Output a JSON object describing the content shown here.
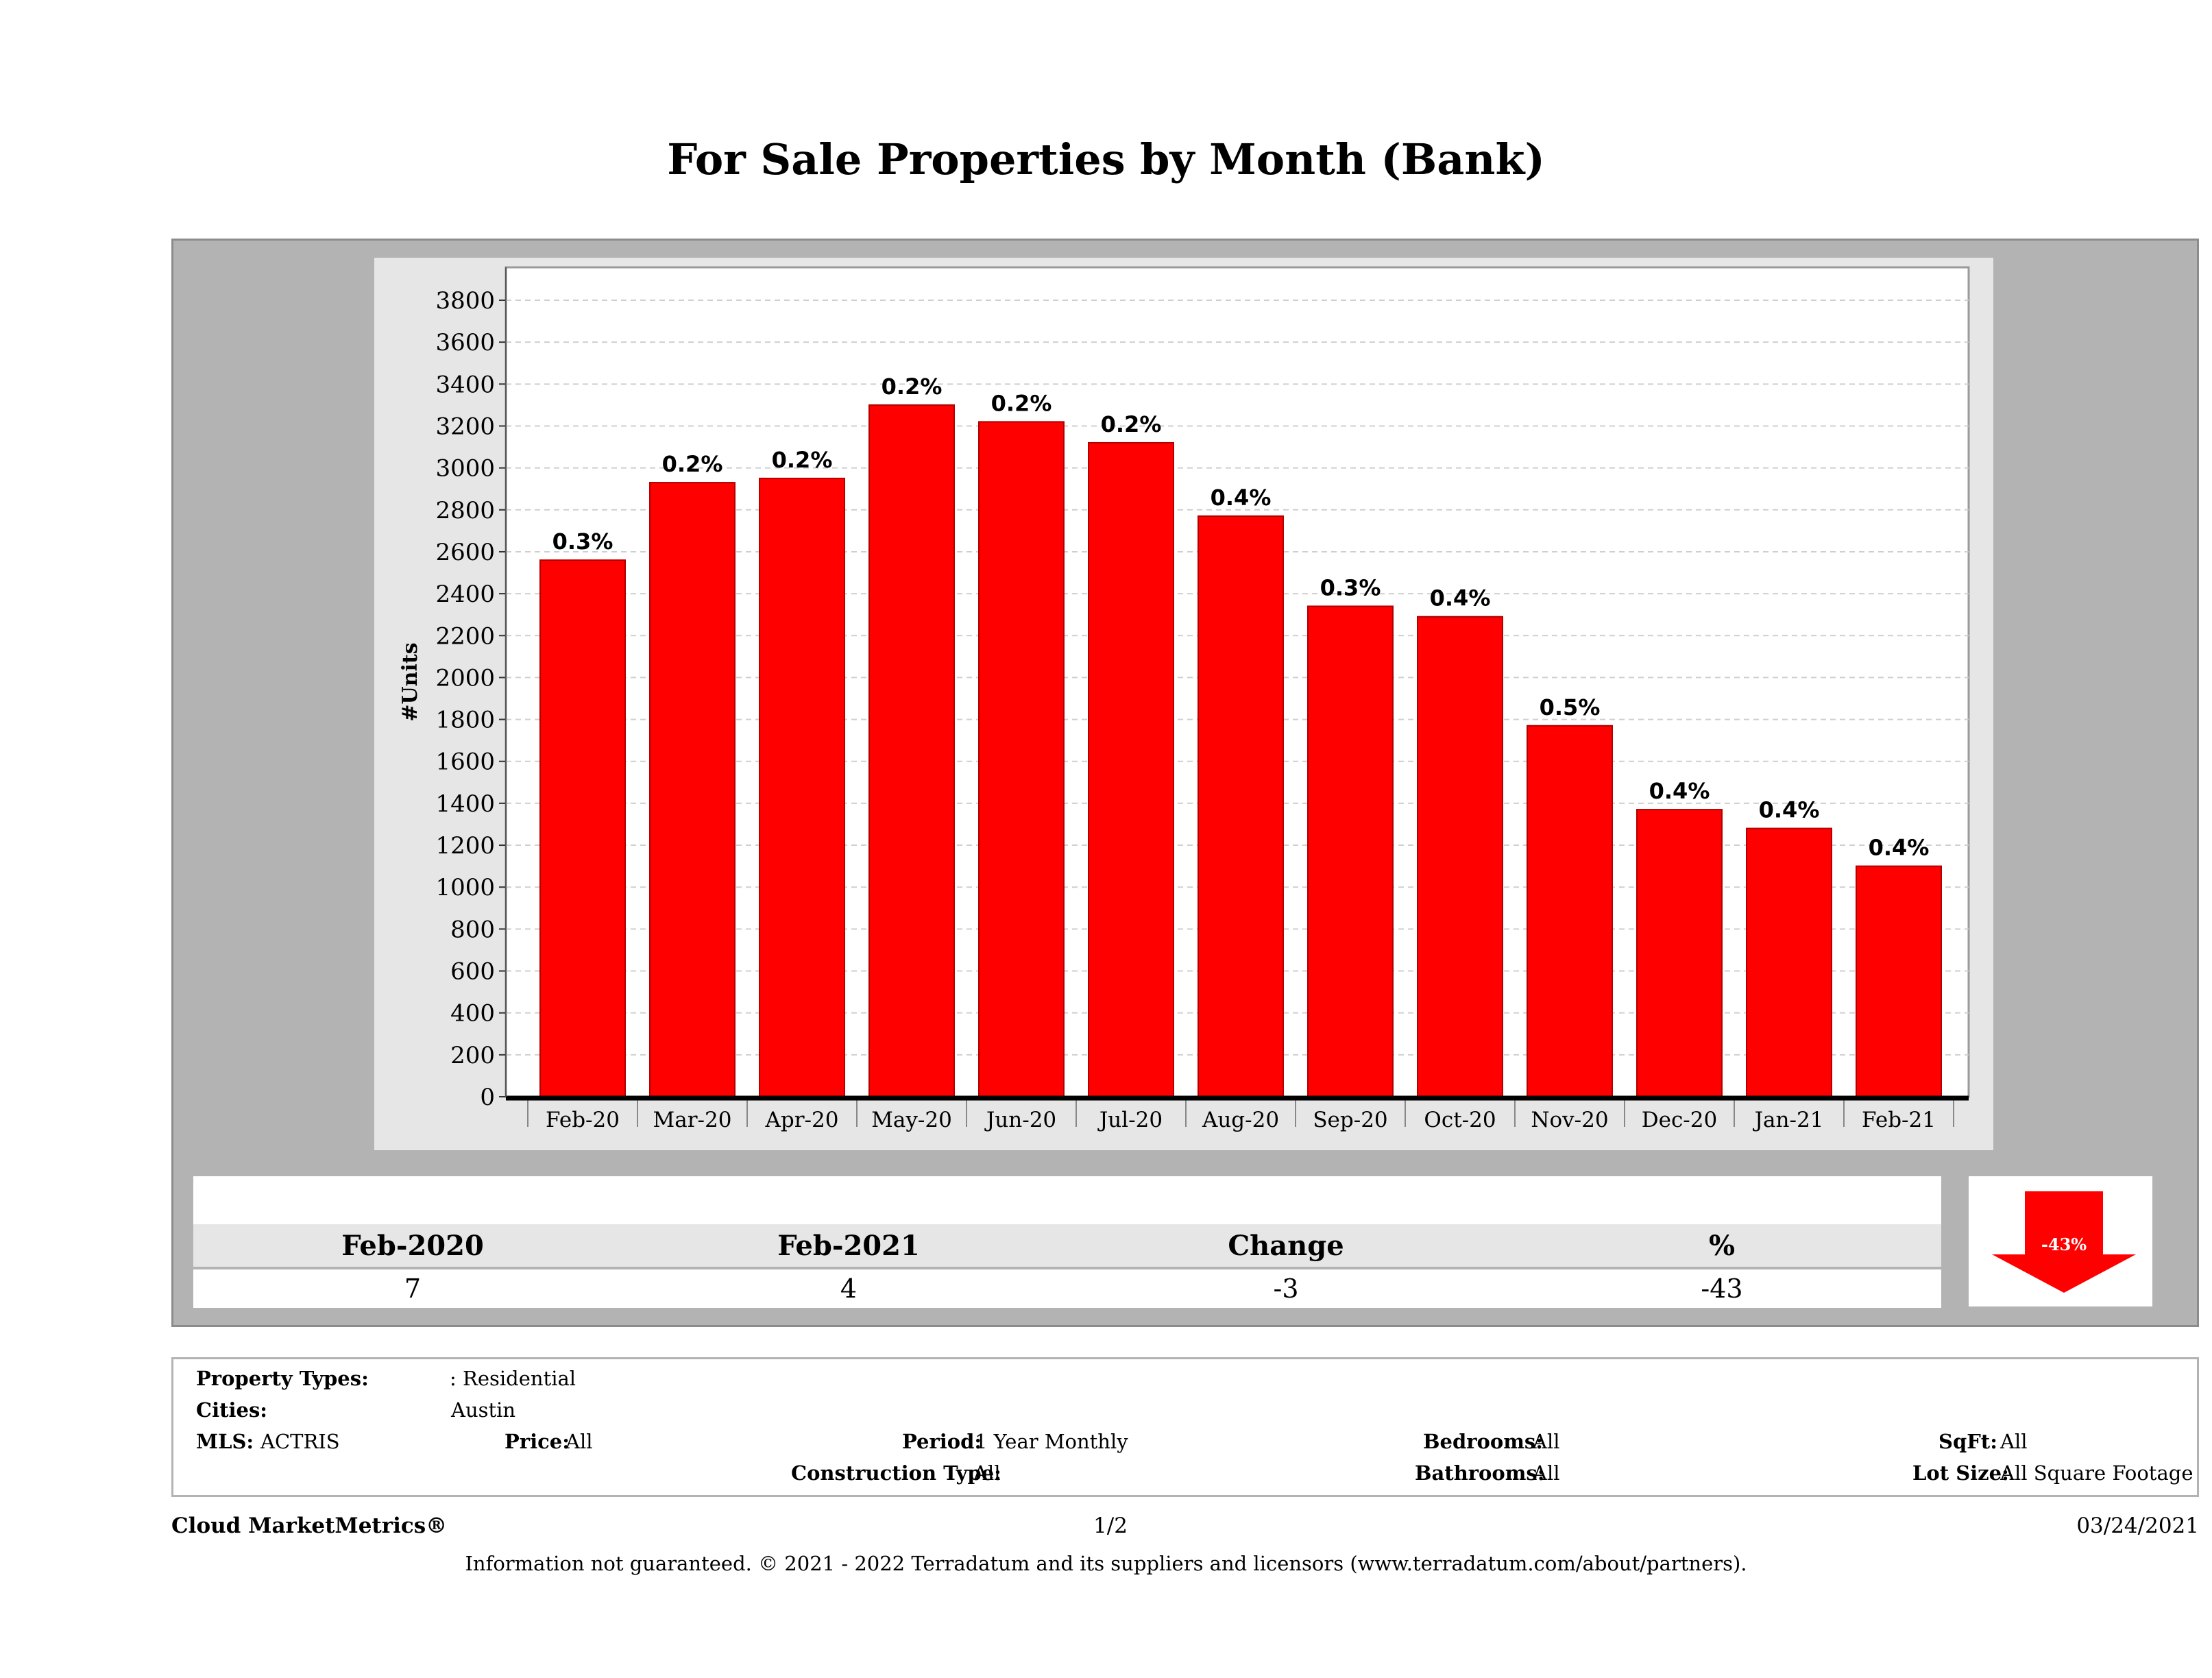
{
  "title": "For Sale Properties by Month (Bank)",
  "chart_data": {
    "type": "bar",
    "title": "For Sale Properties by Month (Bank)",
    "ylabel": "#Units",
    "xlabel": "",
    "ylim": [
      0,
      3900
    ],
    "yticks": [
      0,
      200,
      400,
      600,
      800,
      1000,
      1200,
      1400,
      1600,
      1800,
      2000,
      2200,
      2400,
      2600,
      2800,
      3000,
      3200,
      3400,
      3600,
      3800
    ],
    "categories": [
      "Feb-20",
      "Mar-20",
      "Apr-20",
      "May-20",
      "Jun-20",
      "Jul-20",
      "Aug-20",
      "Sep-20",
      "Oct-20",
      "Nov-20",
      "Dec-20",
      "Jan-21",
      "Feb-21"
    ],
    "values": [
      2560,
      2930,
      2950,
      3300,
      3220,
      3120,
      2770,
      2340,
      2290,
      1770,
      1370,
      1280,
      1100
    ],
    "data_labels": [
      "0.3%",
      "0.2%",
      "0.2%",
      "0.2%",
      "0.2%",
      "0.2%",
      "0.4%",
      "0.3%",
      "0.4%",
      "0.5%",
      "0.4%",
      "0.4%",
      "0.4%"
    ],
    "bar_color": "#ff0000",
    "grid": true
  },
  "summary": {
    "headers": [
      "Feb-2020",
      "Feb-2021",
      "Change",
      "%"
    ],
    "values": [
      "7",
      "4",
      "-3",
      "-43"
    ],
    "arrow_label": "-43%",
    "arrow_color": "#ff0000"
  },
  "criteria": {
    "property_types_label": "Property Types:",
    "property_types_value": ": Residential",
    "cities_label": "Cities:",
    "cities_value": "Austin",
    "mls_label": "MLS:",
    "mls_value": "ACTRIS",
    "price_label": "Price:",
    "price_value": "All",
    "period_label": "Period:",
    "period_value": "1 Year Monthly",
    "construction_label": "Construction Type:",
    "construction_value": "All",
    "bedrooms_label": "Bedrooms:",
    "bedrooms_value": "All",
    "bathrooms_label": "Bathrooms:",
    "bathrooms_value": "All",
    "sqft_label": "SqFt:",
    "sqft_value": "All",
    "lotsize_label": "Lot Size:",
    "lotsize_value": "All Square Footage"
  },
  "footer": {
    "brand": "Cloud MarketMetrics®",
    "page": "1/2",
    "date": "03/24/2021",
    "disclaimer": "Information not guaranteed. © 2021 - 2022 Terradatum and its suppliers and licensors (www.terradatum.com/about/partners)."
  }
}
